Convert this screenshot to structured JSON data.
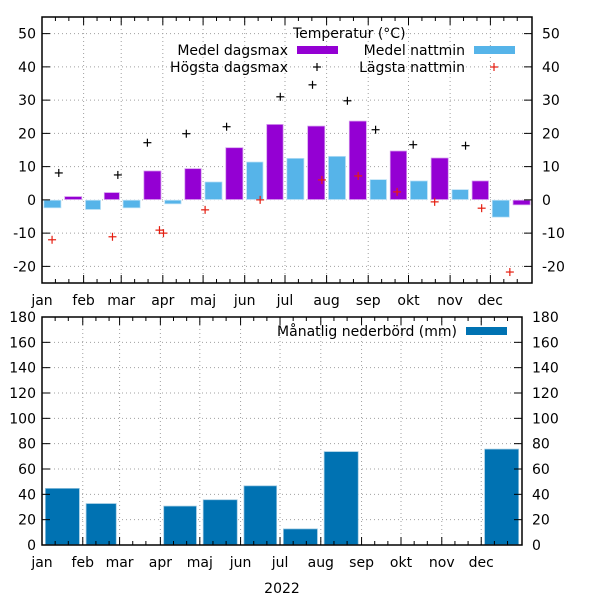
{
  "chart_data": [
    {
      "type": "bar",
      "title": "Temperatur (°C)",
      "xlabel": "",
      "ylabel": "",
      "categories": [
        "jan",
        "feb",
        "mar",
        "apr",
        "maj",
        "jun",
        "jul",
        "aug",
        "sep",
        "okt",
        "nov",
        "dec"
      ],
      "ylim": [
        -25,
        55
      ],
      "yticks": [
        -20,
        -10,
        0,
        10,
        20,
        30,
        40,
        50
      ],
      "grid": true,
      "legend_position": "top-right",
      "series": [
        {
          "name": "Medel nattmin",
          "kind": "bar",
          "color": "#56b4e9",
          "values": [
            -2.5,
            -3.0,
            -2.5,
            -1.3,
            5.5,
            11.5,
            12.6,
            13.2,
            6.2,
            5.8,
            3.2,
            -5.3
          ]
        },
        {
          "name": "Medel dagsmax",
          "kind": "bar",
          "color": "#9400d3",
          "values": [
            1.1,
            2.3,
            8.8,
            9.5,
            15.8,
            22.8,
            22.3,
            23.8,
            14.8,
            12.7,
            5.8,
            -1.6
          ]
        },
        {
          "name": "Högsta dagsmax",
          "kind": "point",
          "color": "#000000",
          "points": [
            {
              "month": "jan",
              "day": 13,
              "value": 8.1
            },
            {
              "month": "feb",
              "day": 26,
              "value": 7.5
            },
            {
              "month": "mar",
              "day": 20,
              "value": 17.2
            },
            {
              "month": "apr",
              "day": 18,
              "value": 19.9
            },
            {
              "month": "maj",
              "day": 18,
              "value": 22.0
            },
            {
              "month": "jun",
              "day": 27,
              "value": 31.0
            },
            {
              "month": "jul",
              "day": 21,
              "value": 34.6
            },
            {
              "month": "aug",
              "day": 16,
              "value": 29.8
            },
            {
              "month": "sep",
              "day": 6,
              "value": 21.1
            },
            {
              "month": "okt",
              "day": 4,
              "value": 16.6
            },
            {
              "month": "nov",
              "day": 12,
              "value": 16.3
            }
          ]
        },
        {
          "name": "Lägsta nattmin",
          "kind": "point",
          "color": "#e51e10",
          "points": [
            {
              "month": "jan",
              "day": 8,
              "value": -12.0
            },
            {
              "month": "feb",
              "day": 22,
              "value": -11.1
            },
            {
              "month": "mar",
              "day": 29,
              "value": -9.1
            },
            {
              "month": "apr",
              "day": 1,
              "value": -10.0
            },
            {
              "month": "maj",
              "day": 2,
              "value": -3.0
            },
            {
              "month": "jun",
              "day": 12,
              "value": 0.0
            },
            {
              "month": "jul",
              "day": 28,
              "value": 6.0
            },
            {
              "month": "aug",
              "day": 24,
              "value": 7.2
            },
            {
              "month": "sep",
              "day": 22,
              "value": 2.4
            },
            {
              "month": "okt",
              "day": 20,
              "value": -0.6
            },
            {
              "month": "nov",
              "day": 24,
              "value": -2.5
            },
            {
              "month": "dec",
              "day": 15,
              "value": -21.7
            }
          ]
        }
      ]
    },
    {
      "type": "bar",
      "title": "Månatlig nederbörd (mm)",
      "xlabel": "2022",
      "ylabel": "",
      "categories": [
        "jan",
        "feb",
        "mar",
        "apr",
        "maj",
        "jun",
        "jul",
        "aug",
        "sep",
        "okt",
        "nov",
        "dec"
      ],
      "ylim": [
        0,
        180
      ],
      "yticks": [
        0,
        20,
        40,
        60,
        80,
        100,
        120,
        140,
        160,
        180
      ],
      "grid": true,
      "legend_position": "top-right",
      "series": [
        {
          "name": "Månatlig nederbörd (mm)",
          "kind": "bar",
          "color": "#0072b2",
          "values": [
            45,
            33,
            0,
            31,
            36,
            47,
            13,
            74,
            0,
            0,
            0,
            76
          ]
        }
      ]
    }
  ],
  "legend": {
    "top_title": "Temperatur (°C)",
    "medel_dagsmax": "Medel dagsmax",
    "hogsta_dagsmax": "Högsta dagsmax",
    "medel_nattmin": "Medel nattmin",
    "lagsta_nattmin": "Lägsta nattmin",
    "nederbord": "Månatlig nederbörd (mm)"
  },
  "xaxis_title": "2022"
}
